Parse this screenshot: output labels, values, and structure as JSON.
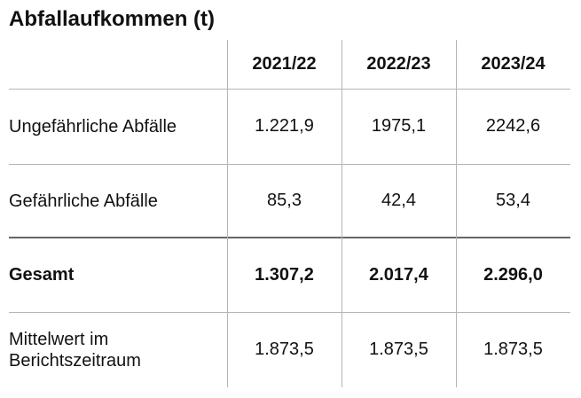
{
  "title": "Abfallaufkommen (t)",
  "table": {
    "header": [
      "2021/22",
      "2022/23",
      "2023/24"
    ],
    "rows": [
      {
        "label": "Ungefährliche Abfälle",
        "values": [
          "1.221,9",
          "1975,1",
          "2242,6"
        ]
      },
      {
        "label": "Gefährliche Abfälle",
        "values": [
          "85,3",
          "42,4",
          "53,4"
        ]
      },
      {
        "label": "Gesamt",
        "values": [
          "1.307,2",
          "2.017,4",
          "2.296,0"
        ]
      },
      {
        "label": "Mittelwert im Berichtszeitraum",
        "values": [
          "1.873,5",
          "1.873,5",
          "1.873,5"
        ]
      }
    ]
  }
}
